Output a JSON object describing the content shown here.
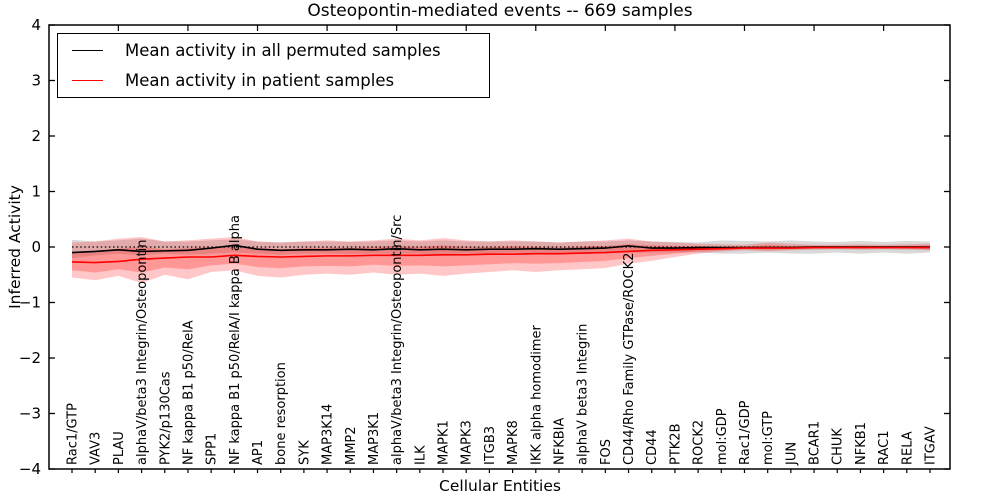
{
  "figure": {
    "title": "Osteopontin-mediated events -- 669 samples",
    "xlabel": "Cellular Entities",
    "ylabel": "Inferred Activity"
  },
  "legend": {
    "position": "upper left",
    "items": [
      {
        "label": "Mean activity in all permuted samples",
        "color": "#000000"
      },
      {
        "label": "Mean activity in patient samples",
        "color": "#ff0000"
      }
    ]
  },
  "chart_data": {
    "type": "line",
    "title": "Osteopontin-mediated events -- 669 samples",
    "xlabel": "Cellular Entities",
    "ylabel": "Inferred Activity",
    "ylim": [
      -4,
      4
    ],
    "yticks": [
      4,
      3,
      2,
      1,
      0,
      -1,
      -2,
      -3,
      -4
    ],
    "ytick_labels": [
      "4",
      "3",
      "2",
      "1",
      "0",
      "−1",
      "−2",
      "−3",
      "−4"
    ],
    "grid": false,
    "zero_line": true,
    "legend_position": "upper left",
    "categories": [
      "Rac1/GTP",
      "VAV3",
      "PLAU",
      "alphaV/beta3 Integrin/Osteopontin",
      "PYK2/p130Cas",
      "NF kappa B1 p50/RelA",
      "SPP1",
      "NF kappa B1 p50/RelA/I kappa B alpha",
      "AP1",
      "bone resorption",
      "SYK",
      "MAP3K14",
      "MMP2",
      "MAP3K1",
      "alphaV/beta3 Integrin/Osteopontin/Src",
      "ILK",
      "MAPK1",
      "MAPK3",
      "ITGB3",
      "MAPK8",
      "IKK alpha homodimer",
      "NFKBIA",
      "alphaV beta3 Integrin",
      "FOS",
      "CD44/Rho Family GTPase/ROCK2",
      "CD44",
      "PTK2B",
      "ROCK2",
      "mol:GDP",
      "Rac1/GDP",
      "mol:GTP",
      "JUN",
      "BCAR1",
      "CHUK",
      "NFKB1",
      "RAC1",
      "RELA",
      "ITGAV"
    ],
    "series": [
      {
        "name": "Mean activity in all permuted samples",
        "color": "#000000",
        "values": [
          -0.1,
          -0.08,
          -0.05,
          -0.08,
          -0.07,
          -0.06,
          -0.02,
          0.03,
          -0.04,
          -0.06,
          -0.05,
          -0.05,
          -0.04,
          -0.05,
          -0.03,
          -0.05,
          -0.04,
          -0.05,
          -0.04,
          -0.04,
          -0.03,
          -0.04,
          -0.03,
          -0.02,
          0.02,
          -0.02,
          -0.02,
          -0.01,
          -0.01,
          -0.01,
          -0.01,
          -0.01,
          0.0,
          0.0,
          0.0,
          0.0,
          0.0,
          0.0
        ]
      },
      {
        "name": "Mean activity in patient samples",
        "color": "#ff0000",
        "values": [
          -0.27,
          -0.28,
          -0.26,
          -0.22,
          -0.2,
          -0.18,
          -0.18,
          -0.15,
          -0.17,
          -0.18,
          -0.17,
          -0.16,
          -0.16,
          -0.15,
          -0.15,
          -0.15,
          -0.14,
          -0.14,
          -0.13,
          -0.13,
          -0.12,
          -0.12,
          -0.11,
          -0.1,
          -0.08,
          -0.06,
          -0.05,
          -0.04,
          -0.03,
          -0.02,
          -0.02,
          -0.02,
          -0.01,
          -0.01,
          -0.01,
          -0.01,
          -0.01,
          -0.01
        ]
      }
    ],
    "bands": [
      {
        "name": "permuted-samples-spread",
        "color": "rgba(120,120,120,0.28)",
        "upper": [
          0.13,
          0.1,
          0.12,
          0.15,
          0.1,
          0.1,
          0.12,
          0.14,
          0.1,
          0.08,
          0.1,
          0.1,
          0.09,
          0.1,
          0.12,
          0.1,
          0.12,
          0.1,
          0.1,
          0.1,
          0.1,
          0.08,
          0.1,
          0.1,
          0.12,
          0.1,
          0.09,
          0.08,
          0.12,
          0.11,
          0.1,
          0.12,
          0.1,
          0.09,
          0.11,
          0.09,
          0.11,
          0.1
        ],
        "lower": [
          -0.2,
          -0.15,
          -0.12,
          -0.15,
          -0.12,
          -0.14,
          -0.12,
          -0.1,
          -0.12,
          -0.14,
          -0.12,
          -0.12,
          -0.13,
          -0.12,
          -0.12,
          -0.12,
          -0.14,
          -0.12,
          -0.12,
          -0.1,
          -0.12,
          -0.12,
          -0.1,
          -0.1,
          -0.1,
          -0.1,
          -0.1,
          -0.1,
          -0.12,
          -0.12,
          -0.1,
          -0.12,
          -0.12,
          -0.1,
          -0.12,
          -0.1,
          -0.12,
          -0.1
        ]
      },
      {
        "name": "patient-samples-outer-spread",
        "color": "rgba(255,30,30,0.25)",
        "upper": [
          0.08,
          0.1,
          0.15,
          0.18,
          0.1,
          0.12,
          0.15,
          0.18,
          0.1,
          0.08,
          0.1,
          0.12,
          0.1,
          0.12,
          0.15,
          0.12,
          0.16,
          0.12,
          0.1,
          0.12,
          0.1,
          0.08,
          0.1,
          0.12,
          0.15,
          0.1,
          0.08,
          0.06,
          0.05,
          0.04,
          0.08,
          0.06,
          0.04,
          0.04,
          0.05,
          0.04,
          0.05,
          0.06
        ],
        "lower": [
          -0.55,
          -0.6,
          -0.52,
          -0.65,
          -0.5,
          -0.58,
          -0.45,
          -0.42,
          -0.52,
          -0.55,
          -0.5,
          -0.48,
          -0.5,
          -0.46,
          -0.5,
          -0.48,
          -0.52,
          -0.48,
          -0.45,
          -0.42,
          -0.45,
          -0.42,
          -0.4,
          -0.38,
          -0.3,
          -0.25,
          -0.18,
          -0.12,
          -0.08,
          -0.06,
          -0.08,
          -0.06,
          -0.05,
          -0.04,
          -0.05,
          -0.04,
          -0.05,
          -0.06
        ]
      },
      {
        "name": "patient-samples-inner-spread",
        "color": "rgba(255,30,30,0.28)",
        "upper": [
          -0.08,
          -0.07,
          -0.03,
          0.0,
          -0.04,
          -0.02,
          0.0,
          0.03,
          -0.02,
          -0.04,
          -0.02,
          -0.01,
          -0.02,
          0.0,
          0.02,
          0.0,
          0.03,
          0.0,
          0.0,
          0.01,
          0.0,
          -0.01,
          0.01,
          0.02,
          0.05,
          0.03,
          0.02,
          0.02,
          0.01,
          0.01,
          0.04,
          0.02,
          0.02,
          0.02,
          0.02,
          0.02,
          0.02,
          0.03
        ],
        "lower": [
          -0.42,
          -0.46,
          -0.4,
          -0.46,
          -0.37,
          -0.4,
          -0.33,
          -0.3,
          -0.36,
          -0.38,
          -0.35,
          -0.34,
          -0.35,
          -0.32,
          -0.34,
          -0.33,
          -0.35,
          -0.33,
          -0.31,
          -0.29,
          -0.3,
          -0.29,
          -0.27,
          -0.25,
          -0.2,
          -0.16,
          -0.12,
          -0.08,
          -0.06,
          -0.04,
          -0.05,
          -0.04,
          -0.03,
          -0.03,
          -0.03,
          -0.03,
          -0.03,
          -0.04
        ]
      }
    ]
  }
}
